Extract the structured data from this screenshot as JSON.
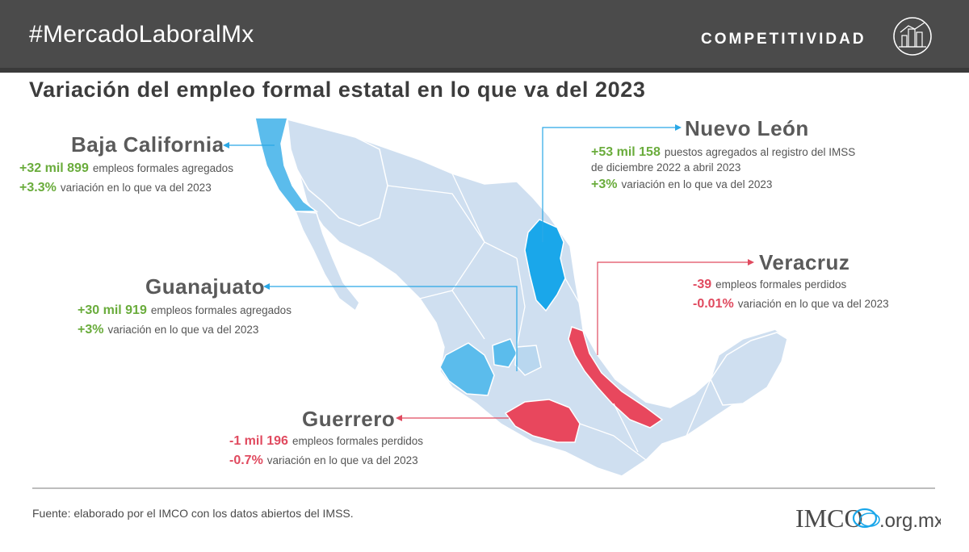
{
  "header": {
    "hashtag": "#MercadoLaboralMx",
    "brand": "COMPETITIVIDAD",
    "brand_icon": "city-skyline-icon"
  },
  "title": "Variación del empleo formal estatal en lo que va del 2023",
  "colors": {
    "header_bg": "#4b4b4b",
    "positive": "#6aac3c",
    "negative": "#e04a5f",
    "state_gain": "#5bbcec",
    "state_gain_strong": "#1aa7ea",
    "state_loss": "#e8475d",
    "state_default": "#cfdff0"
  },
  "states": {
    "baja_california": {
      "name": "Baja California",
      "stat1_num": "+32 mil 899",
      "stat1_text": "empleos formales agregados",
      "stat2_num": "+3.3%",
      "stat2_text": "variación en lo que va del 2023"
    },
    "nuevo_leon": {
      "name": "Nuevo León",
      "stat1_num": "+53 mil 158",
      "stat1_text": "puestos agregados al registro del IMSS",
      "stat1_text2": "de diciembre 2022 a abril 2023",
      "stat2_num": "+3%",
      "stat2_text": "variación en lo que va del 2023"
    },
    "guanajuato": {
      "name": "Guanajuato",
      "stat1_num": "+30 mil 919",
      "stat1_text": "empleos formales agregados",
      "stat2_num": "+3%",
      "stat2_text": "variación en lo que va del 2023"
    },
    "veracruz": {
      "name": "Veracruz",
      "stat1_num": "-39",
      "stat1_text": "empleos formales perdidos",
      "stat2_num": "-0.01%",
      "stat2_text": "variación en lo que va del 2023"
    },
    "guerrero": {
      "name": "Guerrero",
      "stat1_num": "-1 mil 196",
      "stat1_text": "empleos formales perdidos",
      "stat2_num": "-0.7%",
      "stat2_text": "variación en lo que va del 2023"
    }
  },
  "footer": {
    "source": "Fuente: elaborado por el IMCO con los datos abiertos del IMSS.",
    "logo_main": "IMCO",
    "logo_suffix": ".org.mx"
  }
}
